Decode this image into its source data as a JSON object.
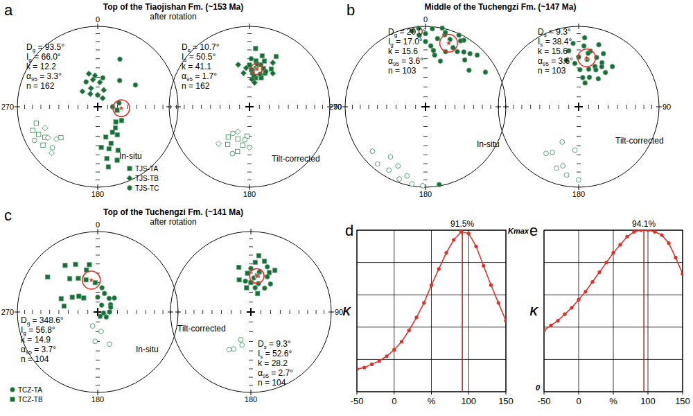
{
  "chart_data": [
    {
      "type": "stereonet",
      "panel": "a",
      "title": "Top of the Tiaojishan Fm. (~153 Ma)",
      "subtitle": "after rotation",
      "color": "#1c6b3a",
      "legend": "bottom-right",
      "nets": [
        {
          "label": "In-situ",
          "compass": [
            0,
            180,
            270
          ],
          "stats": [
            {
              "symbol": "D",
              "sub": "g",
              "value": 93.5,
              "label": "= 93.5°"
            },
            {
              "symbol": "I",
              "sub": "g",
              "value": 66.0,
              "label": "= 66.0°"
            },
            {
              "symbol": "k",
              "value": 12.2,
              "label": "= 12.2"
            },
            {
              "symbol": "α",
              "sub": "95",
              "value": 3.3,
              "label": "= 3.3°"
            },
            {
              "symbol": "n",
              "value": 162,
              "label": "= 162"
            }
          ],
          "series": [
            {
              "name": "TJS-TA",
              "marker": "square",
              "dec": [
                150,
                160,
                165,
                155,
                170,
                160,
                145,
                170,
                165,
                175,
                140,
                130,
                120,
                100,
                245,
                250,
                240,
                235,
                255,
                230
              ],
              "inc": [
                60,
                50,
                45,
                40,
                35,
                30,
                55,
                25,
                58,
                48,
                62,
                66,
                62,
                70,
                -20,
                -15,
                -25,
                -18,
                -22,
                -40
              ]
            },
            {
              "name": "TJS-TB",
              "marker": "diamond",
              "dec": [
                350,
                340,
                355,
                5,
                330,
                20,
                345,
                0,
                315,
                30,
                248,
                238,
                225,
                232
              ],
              "inc": [
                62,
                70,
                58,
                65,
                75,
                72,
                55,
                78,
                68,
                80,
                -30,
                -28,
                -20,
                -35
              ]
            },
            {
              "name": "TJS-TC",
              "marker": "circle",
              "dec": [
                10,
                335,
                80,
                90,
                40,
                60,
                25,
                242,
                228
              ],
              "inc": [
                60,
                62,
                68,
                75,
                55,
                45,
                35,
                -12,
                -25
              ]
            }
          ]
        },
        {
          "label": "Tilt-corrected",
          "compass": [
            180,
            90
          ],
          "stats": [
            {
              "symbol": "D",
              "sub": "s",
              "value": 10.7,
              "label": "= 10.7°"
            },
            {
              "symbol": "I",
              "sub": "s",
              "value": 50.5,
              "label": "= 50.5°"
            },
            {
              "symbol": "k",
              "value": 41.1,
              "label": "= 41.1"
            },
            {
              "symbol": "α",
              "sub": "95",
              "value": 1.7,
              "label": "= 1.7°"
            },
            {
              "symbol": "n",
              "value": 162,
              "label": "= 162"
            }
          ],
          "series": [
            {
              "name": "TJS-TA",
              "marker": "square",
              "dec": [
                10,
                15,
                5,
                20,
                25,
                8,
                12,
                18,
                0,
                30,
                22,
                3,
                14,
                28,
                6,
                200,
                190,
                210,
                185,
                215,
                195
              ],
              "inc": [
                50,
                45,
                55,
                48,
                52,
                42,
                60,
                40,
                47,
                45,
                58,
                52,
                35,
                30,
                28,
                -55,
                -50,
                -45,
                -60,
                -52,
                -42
              ]
            },
            {
              "name": "TJS-TB",
              "marker": "diamond",
              "dec": [
                355,
                350,
                5,
                28,
                35,
                12,
                345,
                205,
                180,
                220
              ],
              "inc": [
                50,
                55,
                62,
                38,
                48,
                65,
                45,
                -62,
                -48,
                -40
              ]
            },
            {
              "name": "TJS-TC",
              "marker": "circle",
              "dec": [
                10,
                18,
                2,
                25,
                8,
                200,
                188,
                212
              ],
              "inc": [
                45,
                55,
                40,
                50,
                58,
                -38,
                -56,
                -58
              ]
            }
          ]
        }
      ]
    },
    {
      "type": "stereonet",
      "panel": "b",
      "title": "Middle of the Tuchengzi Fm. (~147 Ma)",
      "color": "#1c6b3a",
      "nets": [
        {
          "label": "In-situ",
          "compass": [
            0,
            180,
            270
          ],
          "stats": [
            {
              "symbol": "D",
              "sub": "g",
              "value": 20.0,
              "label": "= 20.0°"
            },
            {
              "symbol": "I",
              "sub": "g",
              "value": 17.0,
              "label": "= 17.0°"
            },
            {
              "symbol": "k",
              "value": 15.6,
              "label": "= 15.6"
            },
            {
              "symbol": "α",
              "sub": "95",
              "value": 3.6,
              "label": "= 3.6°"
            },
            {
              "symbol": "n",
              "value": 103,
              "label": "= 103"
            }
          ],
          "series": [
            {
              "marker": "circle",
              "dec": [
                350,
                355,
                0,
                5,
                10,
                15,
                20,
                25,
                30,
                35,
                40,
                45,
                50,
                10,
                20,
                30,
                5,
                15,
                25,
                40,
                355,
                0,
                12,
                28,
                60,
                8,
                18,
                170,
                200,
                210,
                220,
                230,
                205,
                215,
                195,
                190,
                182
              ],
              "inc": [
                5,
                2,
                10,
                3,
                15,
                8,
                12,
                20,
                5,
                18,
                25,
                10,
                30,
                35,
                28,
                22,
                25,
                5,
                2,
                15,
                12,
                20,
                0,
                8,
                15,
                30,
                40,
                2,
                -5,
                -10,
                -8,
                -15,
                -20,
                -25,
                -12,
                -3,
                -2
              ]
            }
          ]
        },
        {
          "label": "Tilt-corrected",
          "compass": [
            180,
            90
          ],
          "stats": [
            {
              "symbol": "D",
              "sub": "s",
              "value": 9.3,
              "label": "= 9.3°"
            },
            {
              "symbol": "I",
              "sub": "s",
              "value": 38.4,
              "label": "= 38.4°"
            },
            {
              "symbol": "k",
              "value": 15.6,
              "label": "= 15.6"
            },
            {
              "symbol": "α",
              "sub": "95",
              "value": 3.6,
              "label": "= 3.6°"
            },
            {
              "symbol": "n",
              "value": 103,
              "label": "= 103"
            }
          ],
          "series": [
            {
              "marker": "circle",
              "dec": [
                350,
                355,
                0,
                5,
                10,
                15,
                20,
                25,
                30,
                35,
                40,
                345,
                8,
                18,
                12,
                22,
                2,
                28,
                15,
                5,
                25,
                10,
                38,
                20,
                355,
                190,
                200,
                210,
                185,
                195,
                205,
                180,
                215
              ],
              "inc": [
                30,
                45,
                38,
                25,
                40,
                50,
                35,
                28,
                42,
                55,
                35,
                40,
                60,
                20,
                30,
                45,
                52,
                38,
                65,
                15,
                48,
                33,
                45,
                58,
                22,
                -15,
                -20,
                -35,
                -45,
                -25,
                -50,
                -10,
                -30
              ]
            }
          ]
        }
      ]
    },
    {
      "type": "stereonet",
      "panel": "c",
      "title": "Top of the Tuchengzi Fm. (~141 Ma)",
      "subtitle": "after rotation",
      "color": "#1c6b3a",
      "legend": "bottom-left",
      "nets": [
        {
          "label": "In-situ",
          "compass": [
            0,
            180,
            270
          ],
          "stats": [
            {
              "symbol": "D",
              "sub": "g",
              "value": 348.6,
              "label": "= 348.6°"
            },
            {
              "symbol": "I",
              "sub": "g",
              "value": 56.8,
              "label": "= 56.8°"
            },
            {
              "symbol": "k",
              "value": 14.9,
              "label": "= 14.9"
            },
            {
              "symbol": "α",
              "sub": "95",
              "value": 3.7,
              "label": "= 3.7°"
            },
            {
              "symbol": "n",
              "value": 104,
              "label": "= 104"
            }
          ],
          "series": [
            {
              "name": "TCZ-TA",
              "marker": "circle",
              "dec": [
                20,
                40,
                60,
                90,
                120,
                10,
                30,
                150,
                100,
                50,
                70,
                0,
                170,
                185,
                200,
                160
              ],
              "inc": [
                70,
                72,
                75,
                78,
                80,
                65,
                82,
                85,
                84,
                68,
                76,
                75,
                -70,
                -60,
                -75,
                -55
              ]
            },
            {
              "name": "TCZ-TB",
              "marker": "square",
              "dec": [
                330,
                320,
                340,
                300,
                290,
                350,
                310,
                335,
                355,
                315,
                280,
                345,
                325,
                305
              ],
              "inc": [
                50,
                45,
                55,
                60,
                50,
                40,
                65,
                35,
                60,
                70,
                55,
                45,
                30,
                25
              ]
            }
          ]
        },
        {
          "label": "Tilt-corrected",
          "compass": [
            180,
            90
          ],
          "stats": [
            {
              "symbol": "D",
              "sub": "s",
              "value": 9.3,
              "label": "= 9.3°"
            },
            {
              "symbol": "I",
              "sub": "s",
              "value": 52.6,
              "label": "= 52.6°"
            },
            {
              "symbol": "k",
              "value": 28.2,
              "label": "= 28.2"
            },
            {
              "symbol": "α",
              "sub": "95",
              "value": 2.7,
              "label": "= 2.7°"
            },
            {
              "symbol": "n",
              "value": 104,
              "label": "= 104"
            }
          ],
          "series": [
            {
              "name": "TCZ-TA",
              "marker": "circle",
              "dec": [
                5,
                15,
                25,
                0,
                10,
                20,
                35,
                350,
                12,
                30,
                195,
                205,
                200,
                210
              ],
              "inc": [
                55,
                60,
                50,
                45,
                65,
                40,
                55,
                58,
                48,
                62,
                -55,
                -48,
                -60,
                -45
              ]
            },
            {
              "name": "TCZ-TB",
              "marker": "square",
              "dec": [
                355,
                345,
                340,
                5,
                15,
                25,
                30,
                10,
                0,
                20,
                350,
                8
              ],
              "inc": [
                50,
                42,
                55,
                38,
                35,
                45,
                40,
                52,
                60,
                70,
                65,
                30
              ]
            }
          ]
        }
      ]
    },
    {
      "type": "line",
      "panel": "d",
      "x": [
        -50,
        -40,
        -30,
        -20,
        -10,
        0,
        10,
        20,
        30,
        40,
        50,
        60,
        70,
        80,
        90,
        100,
        110,
        120,
        130,
        140,
        150
      ],
      "values": [
        0.7,
        0.75,
        0.85,
        0.95,
        1.1,
        1.3,
        1.55,
        1.9,
        2.3,
        2.75,
        3.3,
        3.8,
        4.3,
        4.7,
        4.95,
        4.9,
        4.5,
        3.9,
        3.3,
        2.75,
        2.2
      ],
      "xlim": [
        -50,
        150
      ],
      "ylim": [
        0,
        5
      ],
      "xticks": [
        -50,
        0,
        {
          "value": 50,
          "label": "%"
        },
        100,
        150
      ],
      "yticks": [
        0,
        1,
        2,
        3,
        4,
        5
      ],
      "grid": true,
      "tick_labels": "x",
      "y_label": "K",
      "color": "#e0302a",
      "marker": "circle",
      "peak": {
        "value": 91.5,
        "label": "91.5%"
      },
      "annotations": [
        {
          "text": "Kmax",
          "x": 150,
          "y": 5
        }
      ]
    },
    {
      "type": "line",
      "panel": "e",
      "x": [
        -50,
        -40,
        -30,
        -20,
        -10,
        0,
        10,
        20,
        30,
        40,
        50,
        60,
        70,
        80,
        90,
        100,
        110,
        120,
        130,
        140,
        150
      ],
      "values": [
        1.9,
        2.05,
        2.2,
        2.4,
        2.6,
        2.85,
        3.1,
        3.4,
        3.7,
        4.0,
        4.3,
        4.55,
        4.8,
        4.95,
        5.0,
        5.0,
        4.95,
        4.85,
        4.6,
        4.15,
        3.65
      ],
      "xlim": [
        -50,
        150
      ],
      "ylim": [
        0,
        5
      ],
      "xticks": [
        -50,
        0,
        {
          "value": 50,
          "label": "%"
        },
        100,
        150
      ],
      "yticks": [
        0,
        1,
        2,
        3,
        4,
        5
      ],
      "grid": true,
      "tick_labels": "x",
      "y_label": "K",
      "color": "#e0302a",
      "marker": "circle",
      "peak": {
        "value": 94.1,
        "label": "94.1%"
      },
      "annotations": [
        {
          "text": "0",
          "x": -50,
          "y": 0
        }
      ]
    }
  ]
}
